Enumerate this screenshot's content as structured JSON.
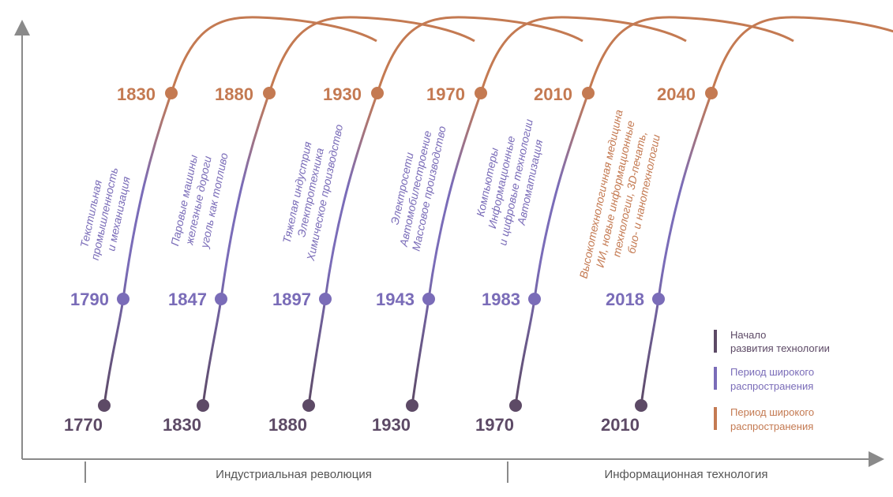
{
  "waves": [
    {
      "start_year": "1770",
      "mid_year": "1790",
      "peak_year": "1830",
      "lines": [
        "Текстильная",
        "промышленность",
        "и механизация"
      ]
    },
    {
      "start_year": "1830",
      "mid_year": "1847",
      "peak_year": "1880",
      "lines": [
        "Паровые машины",
        "железные дороги",
        "уголь как топливо"
      ]
    },
    {
      "start_year": "1880",
      "mid_year": "1897",
      "peak_year": "1930",
      "lines": [
        "Тяжелая индустрия",
        "Электротехника",
        "Химическое производство"
      ]
    },
    {
      "start_year": "1930",
      "mid_year": "1943",
      "peak_year": "1970",
      "lines": [
        "Электросети",
        "Автомобилестроение",
        "Массовое производство"
      ]
    },
    {
      "start_year": "1970",
      "mid_year": "1983",
      "peak_year": "2010",
      "lines": [
        "Компьютеры",
        "Информационные",
        "и цифровые технологии",
        "Автоматизация"
      ]
    },
    {
      "start_year": "2010",
      "mid_year": "2018",
      "peak_year": "2040",
      "lines": [
        "Высокотехнологичная медицина",
        "ИИ, новые информационные",
        "технологии, 3D-печать,",
        "био- и нанотехнологии"
      ]
    }
  ],
  "eras": {
    "industrial": "Индустриальная революция",
    "information": "Информационная технология"
  },
  "legend": [
    {
      "lines": [
        "Начало",
        "развития технологии"
      ],
      "color": "#5d4a66"
    },
    {
      "lines": [
        "Период широкого",
        "распространения"
      ],
      "color": "#7a6cb8"
    },
    {
      "lines": [
        "Период широкого",
        "распространения"
      ],
      "color": "#c47a52"
    }
  ],
  "colors": {
    "start": "#5d4a66",
    "mid": "#7a6cb8",
    "peak": "#c47a52",
    "axis": "#8a8a8a"
  }
}
